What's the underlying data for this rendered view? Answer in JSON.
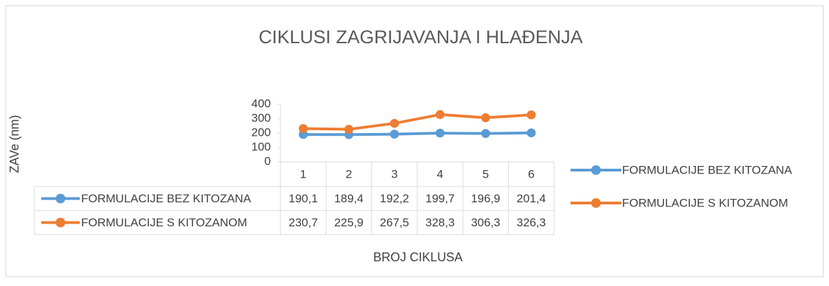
{
  "chart_data": {
    "type": "line",
    "title": "CIKLUSI ZAGRIJAVANJA I HLAĐENJA",
    "y_label": "ZAVe (nm)",
    "x_label": "BROJ CIKLUSA",
    "categories": [
      "1",
      "2",
      "3",
      "4",
      "5",
      "6"
    ],
    "series": [
      {
        "name": "FORMULACIJE BEZ KITOZANA",
        "color": "#5b9bd5",
        "values": [
          190.1,
          189.4,
          192.2,
          199.7,
          196.9,
          201.4
        ],
        "value_labels": [
          "190,1",
          "189,4",
          "192,2",
          "199,7",
          "196,9",
          "201,4"
        ]
      },
      {
        "name": "FORMULACIJE S KITOZANOM",
        "color": "#ed7d31",
        "values": [
          230.7,
          225.9,
          267.5,
          328.3,
          306.3,
          326.3
        ],
        "value_labels": [
          "230,7",
          "225,9",
          "267,5",
          "328,3",
          "306,3",
          "326,3"
        ]
      }
    ],
    "ylim": [
      0,
      400
    ],
    "yticks": [
      0,
      100,
      200,
      300,
      400
    ],
    "legend": "right"
  }
}
